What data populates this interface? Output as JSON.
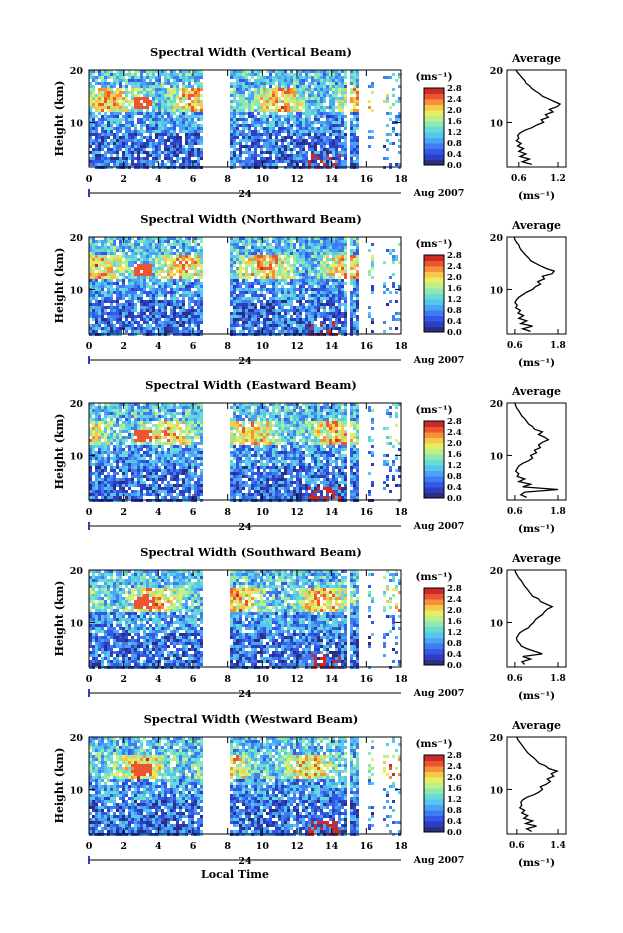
{
  "figure": {
    "x_axis_title": "Local Time",
    "date_label": "Aug 2007",
    "day_label": "24",
    "height_label": "Height (km)",
    "colorbar_unit": "(ms⁻¹)",
    "profile_unit": "(ms⁻¹)",
    "profile_title": "Average"
  },
  "chart_data": [
    {
      "type": "heatmap",
      "title": "Spectral Width (Vertical Beam)",
      "xlabel": "Local Time",
      "ylabel": "Height (km)",
      "xlim": [
        0,
        18
      ],
      "ylim": [
        1.5,
        20
      ],
      "xticks": [
        0,
        2,
        4,
        6,
        8,
        10,
        12,
        14,
        16,
        18
      ],
      "yticks": [
        10,
        20
      ],
      "data_gaps_hours": [
        [
          6.5,
          8.0
        ],
        [
          14.8,
          15.0
        ],
        [
          15.5,
          16.0
        ],
        [
          16.4,
          16.8
        ]
      ],
      "colorbar": {
        "ticks": [
          "0.0",
          "0.4",
          "0.8",
          "1.2",
          "1.6",
          "2.0",
          "2.4",
          "2.8"
        ],
        "unit": "(ms⁻¹)"
      },
      "profile": {
        "title": "Average",
        "xlabel": "(ms⁻¹)",
        "xlim": [
          0.4,
          1.4
        ],
        "xticks": [
          "0.6",
          "1.2"
        ],
        "yticks": [
          10,
          20
        ],
        "heights": [
          2,
          2.5,
          3,
          3.5,
          4,
          4.5,
          5,
          5.5,
          6,
          6.5,
          7,
          7.5,
          8,
          8.5,
          9,
          9.5,
          10,
          10.5,
          11,
          11.5,
          12,
          12.5,
          13,
          13.5,
          14,
          14.5,
          15,
          15.5,
          16,
          16.5,
          17,
          17.5,
          18,
          18.5,
          19,
          19.5,
          20
        ],
        "values": [
          0.82,
          0.66,
          0.78,
          0.62,
          0.72,
          0.6,
          0.68,
          0.58,
          0.64,
          0.56,
          0.6,
          0.58,
          0.62,
          0.7,
          0.82,
          0.9,
          1.02,
          0.98,
          1.1,
          1.05,
          1.18,
          1.12,
          1.25,
          1.3,
          1.2,
          1.1,
          1.0,
          0.95,
          0.88,
          0.82,
          0.78,
          0.72,
          0.7,
          0.66,
          0.62,
          0.58,
          0.55
        ]
      }
    },
    {
      "type": "heatmap",
      "title": "Spectral Width (Northward Beam)",
      "xlabel": "Local Time",
      "ylabel": "Height (km)",
      "xlim": [
        0,
        18
      ],
      "ylim": [
        1.5,
        20
      ],
      "xticks": [
        0,
        2,
        4,
        6,
        8,
        10,
        12,
        14,
        16,
        18
      ],
      "yticks": [
        10,
        20
      ],
      "data_gaps_hours": [
        [
          6.5,
          8.0
        ],
        [
          14.8,
          15.0
        ],
        [
          15.5,
          16.0
        ],
        [
          16.4,
          16.8
        ]
      ],
      "colorbar": {
        "ticks": [
          "0.0",
          "0.4",
          "0.8",
          "1.2",
          "1.6",
          "2.0",
          "2.4",
          "2.8"
        ],
        "unit": "(ms⁻¹)"
      },
      "profile": {
        "title": "Average",
        "xlabel": "(ms⁻¹)",
        "xlim": [
          0.4,
          1.9
        ],
        "xticks": [
          "0.6",
          "1.8"
        ],
        "yticks": [
          10,
          20
        ],
        "heights": [
          2,
          2.5,
          3,
          3.5,
          4,
          4.5,
          5,
          5.5,
          6,
          6.5,
          7,
          7.5,
          8,
          8.5,
          9,
          9.5,
          10,
          10.5,
          11,
          11.5,
          12,
          12.5,
          13,
          13.5,
          14,
          14.5,
          15,
          15.5,
          16,
          16.5,
          17,
          17.5,
          18,
          18.5,
          19,
          19.5,
          20
        ],
        "values": [
          1.0,
          0.8,
          1.05,
          0.75,
          0.9,
          0.7,
          0.82,
          0.68,
          0.74,
          0.62,
          0.66,
          0.6,
          0.64,
          0.7,
          0.8,
          0.9,
          1.05,
          1.12,
          1.25,
          1.18,
          1.35,
          1.3,
          1.55,
          1.6,
          1.4,
          1.25,
          1.12,
          1.0,
          0.95,
          0.88,
          0.82,
          0.76,
          0.72,
          0.7,
          0.64,
          0.6,
          0.58
        ]
      }
    },
    {
      "type": "heatmap",
      "title": "Spectral Width (Eastward Beam)",
      "xlabel": "Local Time",
      "ylabel": "Height (km)",
      "xlim": [
        0,
        18
      ],
      "ylim": [
        1.5,
        20
      ],
      "xticks": [
        0,
        2,
        4,
        6,
        8,
        10,
        12,
        14,
        16,
        18
      ],
      "yticks": [
        10,
        20
      ],
      "data_gaps_hours": [
        [
          6.5,
          8.0
        ],
        [
          14.8,
          15.0
        ],
        [
          15.5,
          16.0
        ],
        [
          16.4,
          16.8
        ]
      ],
      "colorbar": {
        "ticks": [
          "0.0",
          "0.4",
          "0.8",
          "1.2",
          "1.6",
          "2.0",
          "2.4",
          "2.8"
        ],
        "unit": "(ms⁻¹)"
      },
      "profile": {
        "title": "Average",
        "xlabel": "(ms⁻¹)",
        "xlim": [
          0.4,
          1.9
        ],
        "xticks": [
          "0.6",
          "1.8"
        ],
        "yticks": [
          10,
          20
        ],
        "heights": [
          2,
          2.5,
          3,
          3.5,
          4,
          4.5,
          5,
          5.5,
          6,
          6.5,
          7,
          7.5,
          8,
          8.5,
          9,
          9.5,
          10,
          10.5,
          11,
          11.5,
          12,
          12.5,
          13,
          13.5,
          14,
          14.5,
          15,
          15.5,
          16,
          16.5,
          17,
          17.5,
          18,
          18.5,
          19,
          19.5,
          20
        ],
        "values": [
          0.9,
          0.75,
          0.85,
          1.7,
          0.8,
          1.0,
          0.7,
          0.85,
          0.66,
          0.7,
          0.62,
          0.66,
          0.7,
          0.8,
          0.95,
          1.05,
          1.0,
          1.15,
          1.1,
          1.25,
          1.2,
          1.3,
          1.45,
          1.35,
          1.2,
          1.3,
          1.1,
          1.05,
          0.95,
          0.9,
          0.85,
          0.78,
          0.74,
          0.7,
          0.65,
          0.62,
          0.6
        ]
      }
    },
    {
      "type": "heatmap",
      "title": "Spectral Width (Southward Beam)",
      "xlabel": "Local Time",
      "ylabel": "Height (km)",
      "xlim": [
        0,
        18
      ],
      "ylim": [
        1.5,
        20
      ],
      "xticks": [
        0,
        2,
        4,
        6,
        8,
        10,
        12,
        14,
        16,
        18
      ],
      "yticks": [
        10,
        20
      ],
      "data_gaps_hours": [
        [
          6.5,
          8.0
        ],
        [
          14.8,
          15.0
        ],
        [
          15.5,
          16.0
        ],
        [
          16.4,
          16.8
        ]
      ],
      "colorbar": {
        "ticks": [
          "0.0",
          "0.4",
          "0.8",
          "1.2",
          "1.6",
          "2.0",
          "2.4",
          "2.8"
        ],
        "unit": "(ms⁻¹)"
      },
      "profile": {
        "title": "Average",
        "xlabel": "(ms⁻¹)",
        "xlim": [
          0.4,
          1.9
        ],
        "xticks": [
          "0.6",
          "1.8"
        ],
        "yticks": [
          10,
          20
        ],
        "heights": [
          2,
          2.5,
          3,
          3.5,
          4,
          4.5,
          5,
          5.5,
          6,
          6.5,
          7,
          7.5,
          8,
          8.5,
          9,
          9.5,
          10,
          10.5,
          11,
          11.5,
          12,
          12.5,
          13,
          13.5,
          14,
          14.5,
          15,
          15.5,
          16,
          16.5,
          17,
          17.5,
          18,
          18.5,
          19,
          19.5,
          20
        ],
        "values": [
          0.85,
          0.78,
          1.0,
          0.8,
          1.3,
          1.1,
          0.9,
          0.76,
          0.72,
          0.66,
          0.64,
          0.68,
          0.72,
          0.82,
          0.95,
          1.0,
          1.08,
          1.12,
          1.2,
          1.3,
          1.35,
          1.42,
          1.55,
          1.4,
          1.25,
          1.2,
          1.05,
          1.0,
          0.95,
          0.9,
          0.84,
          0.8,
          0.76,
          0.7,
          0.66,
          0.62,
          0.6
        ]
      }
    },
    {
      "type": "heatmap",
      "title": "Spectral Width (Westward Beam)",
      "xlabel": "Local Time",
      "ylabel": "Height (km)",
      "xlim": [
        0,
        18
      ],
      "ylim": [
        1.5,
        20
      ],
      "xticks": [
        0,
        2,
        4,
        6,
        8,
        10,
        12,
        14,
        16,
        18
      ],
      "yticks": [
        10,
        20
      ],
      "data_gaps_hours": [
        [
          6.5,
          8.0
        ],
        [
          14.8,
          15.0
        ],
        [
          15.5,
          16.0
        ],
        [
          16.4,
          16.8
        ]
      ],
      "colorbar": {
        "ticks": [
          "0.0",
          "0.4",
          "0.8",
          "1.2",
          "1.6",
          "2.0",
          "2.4",
          "2.8"
        ],
        "unit": "(ms⁻¹)"
      },
      "profile": {
        "title": "Average",
        "xlabel": "(ms⁻¹)",
        "xlim": [
          0.4,
          1.6
        ],
        "xticks": [
          "0.6",
          "1.4"
        ],
        "yticks": [
          10,
          20
        ],
        "heights": [
          2,
          2.5,
          3,
          3.5,
          4,
          4.5,
          5,
          5.5,
          6,
          6.5,
          7,
          7.5,
          8,
          8.5,
          9,
          9.5,
          10,
          10.5,
          11,
          11.5,
          12,
          12.5,
          13,
          13.5,
          14,
          14.5,
          15,
          15.5,
          16,
          16.5,
          17,
          17.5,
          18,
          18.5,
          19,
          19.5,
          20
        ],
        "values": [
          0.9,
          0.8,
          1.0,
          0.78,
          0.92,
          0.74,
          0.82,
          0.7,
          0.76,
          0.66,
          0.7,
          0.68,
          0.72,
          0.8,
          0.95,
          1.05,
          1.12,
          1.08,
          1.2,
          1.28,
          1.22,
          1.35,
          1.3,
          1.42,
          1.25,
          1.18,
          1.05,
          1.0,
          0.95,
          0.88,
          0.82,
          0.78,
          0.74,
          0.7,
          0.66,
          0.62,
          0.6
        ]
      }
    }
  ]
}
